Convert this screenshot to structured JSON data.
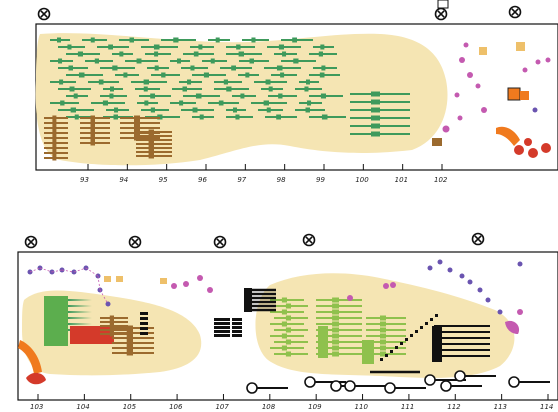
{
  "panels": [
    {
      "id": "top",
      "axis_ticks": [
        "93",
        "94",
        "95",
        "96",
        "97",
        "98",
        "99",
        "100",
        "101",
        "102"
      ],
      "markers": 5
    },
    {
      "id": "bottom",
      "axis_ticks": [
        "103",
        "104",
        "105",
        "106",
        "107",
        "108",
        "109",
        "110",
        "111",
        "112",
        "113",
        "114"
      ],
      "markers": 7
    }
  ],
  "icons": {
    "marker": "circle-x-icon",
    "ring": "open-ring-icon"
  },
  "colors": {
    "blob": "#f5e5b3",
    "green_dark": "#3e9a5c",
    "green_light": "#8fc14d",
    "brown": "#9b6a2e",
    "red": "#d43a2a",
    "orange": "#f07a1e",
    "magenta": "#c45ab0",
    "purple": "#6a54b0",
    "gold": "#eec06a",
    "black": "#111111"
  }
}
